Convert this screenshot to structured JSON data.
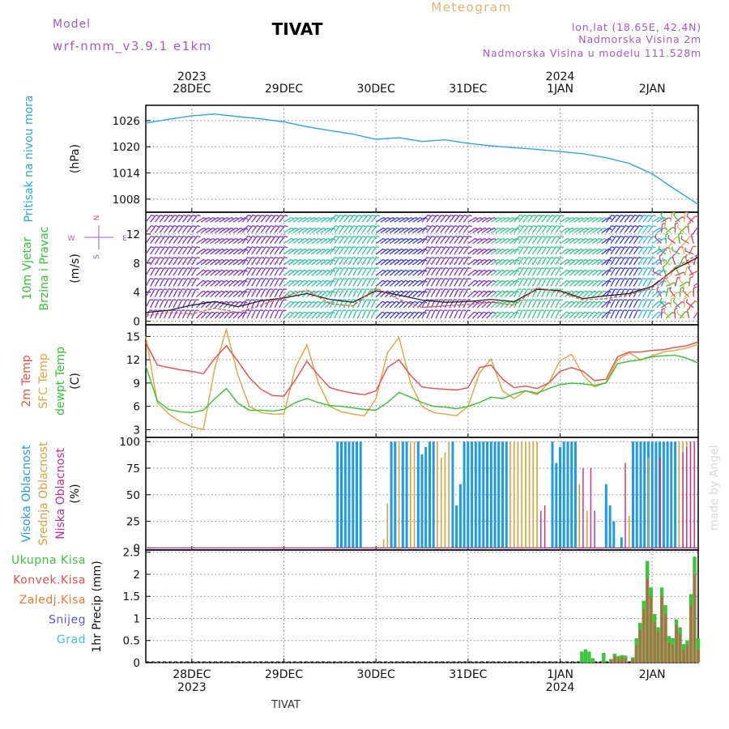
{
  "header": {
    "model_label": "Model",
    "model_name": "wrf-nmm_v3.9.1 e1km",
    "station": "TIVAT",
    "meteogram": "Meteogram",
    "lonlat": "lon,lat (18.65E, 42.4N)",
    "elevation": "Nadmorska Visina 2m",
    "model_elevation": "Nadmorska Visina u modelu 111.528m",
    "footer_station": "TIVAT",
    "credit": "made by Angel"
  },
  "time_axis": {
    "days": [
      {
        "label": "28DEC",
        "year": "2023"
      },
      {
        "label": "29DEC",
        "year": ""
      },
      {
        "label": "30DEC",
        "year": ""
      },
      {
        "label": "31DEC",
        "year": ""
      },
      {
        "label": "1JAN",
        "year": "2024"
      },
      {
        "label": "2JAN",
        "year": ""
      }
    ],
    "hours_before_first_label": 12,
    "total_hours": 144
  },
  "colors": {
    "pressure": "#29a7e6",
    "t2m": "#ec4b4b",
    "tsfc": "#e0a63c",
    "dewpt": "#2fc62f",
    "cloud_high": "#1e9be6",
    "cloud_mid": "#d9a13a",
    "cloud_low": "#cc2a90",
    "precip_total": "#3cc53c",
    "precip_conv": "#e05050",
    "snow": "#5a5ae0",
    "hail": "#3cc8c8",
    "wind_speed": "#222222",
    "wind_gust": "#e05a40"
  },
  "chart_data": [
    {
      "type": "line",
      "name": "pressure",
      "ylabel_lines": [
        "Pritisak na nivou mora"
      ],
      "unit": "(hPa)",
      "yticks": [
        1008,
        1014,
        1020,
        1026
      ],
      "ylim": [
        1005,
        1029.5
      ],
      "grid": true,
      "x_hours": [
        0,
        6,
        12,
        18,
        24,
        30,
        36,
        42,
        48,
        54,
        60,
        66,
        72,
        78,
        84,
        90,
        96,
        102,
        108,
        114,
        120,
        126,
        132,
        138,
        144
      ],
      "series": [
        {
          "values": [
            1025.4,
            1026.3,
            1027.1,
            1027.5,
            1026.9,
            1026.4,
            1025.7,
            1024.6,
            1023.7,
            1022.9,
            1021.7,
            1022.1,
            1021.2,
            1021.6,
            1020.8,
            1020.2,
            1019.8,
            1019.4,
            1018.9,
            1018.4,
            1017.5,
            1016.2,
            1013.8,
            1010.2,
            1006.8
          ]
        }
      ]
    },
    {
      "type": "line",
      "name": "wind",
      "ylabel_lines": [
        "10m Vjetar",
        "Brzina i Pravac"
      ],
      "unit": "(m/s)",
      "compass": {
        "n": "N",
        "s": "S",
        "e": "E",
        "w": "W"
      },
      "yticks": [
        0,
        4,
        8,
        12
      ],
      "ylim": [
        -0.5,
        15
      ],
      "grid": true,
      "x_hours": [
        0,
        6,
        12,
        18,
        24,
        30,
        36,
        42,
        48,
        54,
        60,
        66,
        72,
        78,
        84,
        90,
        96,
        102,
        108,
        114,
        120,
        126,
        132,
        138,
        144
      ],
      "series": [
        {
          "name": "speed",
          "values": [
            1.2,
            1.5,
            2.2,
            2.7,
            2.0,
            2.8,
            3.2,
            3.8,
            3.0,
            2.6,
            4.2,
            3.6,
            2.9,
            2.6,
            2.7,
            3.0,
            2.7,
            4.4,
            4.2,
            3.1,
            3.5,
            3.8,
            4.8,
            7.2,
            8.8
          ]
        },
        {
          "name": "gust",
          "values": [
            0.8,
            1.2,
            1.0,
            1.8,
            1.2,
            2.2,
            3.4,
            4.3,
            2.4,
            2.1,
            4.6,
            3.0,
            1.9,
            2.1,
            2.3,
            2.6,
            2.2,
            4.6,
            4.0,
            2.9,
            3.1,
            3.6,
            4.6,
            7.4,
            9.2
          ]
        }
      ]
    },
    {
      "type": "line",
      "name": "temperature",
      "ylabel_lines": [
        "2m Temp",
        "SFC Temp",
        "dewpt Temp"
      ],
      "unit": "(C)",
      "yticks": [
        3,
        6,
        9,
        12,
        15
      ],
      "ylim": [
        2,
        16.5
      ],
      "grid": true,
      "x_hours": [
        0,
        3,
        6,
        9,
        12,
        15,
        18,
        21,
        24,
        27,
        30,
        33,
        36,
        39,
        42,
        45,
        48,
        51,
        54,
        57,
        60,
        63,
        66,
        69,
        72,
        75,
        78,
        81,
        84,
        87,
        90,
        93,
        96,
        99,
        102,
        105,
        108,
        111,
        114,
        117,
        120,
        123,
        126,
        129,
        132,
        135,
        138,
        141,
        144
      ],
      "series": [
        {
          "name": "2m",
          "values": [
            14.2,
            11.3,
            11.0,
            10.7,
            10.5,
            10.2,
            12.2,
            13.8,
            11.8,
            9.7,
            8.2,
            7.4,
            7.3,
            9.4,
            11.8,
            10.0,
            8.4,
            8.0,
            7.7,
            7.5,
            8.0,
            11.0,
            12.0,
            10.0,
            8.5,
            8.3,
            8.2,
            8.1,
            8.4,
            11.0,
            11.3,
            9.5,
            8.4,
            8.6,
            8.3,
            9.0,
            10.5,
            11.0,
            10.5,
            9.3,
            9.5,
            12.4,
            13.0,
            13.0,
            13.2,
            13.3,
            13.6,
            13.8,
            14.3
          ]
        },
        {
          "name": "sfc",
          "values": [
            15.0,
            6.5,
            5.0,
            4.0,
            3.4,
            3.0,
            11.0,
            15.9,
            10.0,
            6.0,
            5.2,
            5.0,
            5.0,
            11.0,
            13.9,
            9.0,
            6.0,
            5.3,
            5.0,
            4.8,
            7.0,
            12.9,
            14.9,
            9.0,
            6.0,
            5.2,
            5.0,
            4.8,
            6.0,
            10.3,
            12.1,
            8.0,
            7.0,
            8.0,
            7.5,
            9.0,
            11.9,
            12.7,
            10.0,
            8.5,
            9.1,
            12.0,
            12.9,
            12.0,
            12.5,
            13.0,
            13.2,
            13.5,
            14.0
          ]
        },
        {
          "name": "dewpt",
          "values": [
            11.2,
            6.7,
            5.6,
            5.3,
            5.2,
            5.5,
            7.0,
            8.3,
            6.4,
            5.5,
            5.5,
            5.4,
            5.6,
            6.5,
            7.0,
            6.5,
            6.1,
            6.0,
            5.8,
            5.6,
            5.5,
            6.5,
            7.8,
            7.2,
            6.5,
            6.0,
            5.9,
            5.7,
            6.0,
            6.5,
            7.2,
            7.0,
            7.6,
            8.0,
            7.7,
            8.3,
            8.8,
            9.0,
            8.9,
            8.7,
            9.0,
            11.5,
            11.8,
            12.0,
            12.4,
            12.5,
            12.6,
            12.2,
            11.6
          ]
        }
      ]
    },
    {
      "type": "bar",
      "name": "clouds",
      "ylabel_lines": [
        "Visoka Oblacnost",
        "Srednja Oblacnost",
        "Niska Oblacnost"
      ],
      "unit": "(%)",
      "yticks": [
        0,
        25,
        50,
        75,
        100
      ],
      "ylim": [
        -2,
        104
      ],
      "grid": true,
      "series": [
        {
          "name": "high",
          "bars": [
            [
              50,
              100
            ],
            [
              51,
              100
            ],
            [
              52,
              100
            ],
            [
              53,
              100
            ],
            [
              54,
              100
            ],
            [
              55,
              100
            ],
            [
              56,
              100
            ],
            [
              64,
              100
            ],
            [
              65,
              100
            ],
            [
              67,
              100
            ],
            [
              68,
              100
            ],
            [
              71,
              100
            ],
            [
              72,
              88
            ],
            [
              73,
              95
            ],
            [
              74,
              100
            ],
            [
              75,
              100
            ],
            [
              80,
              100
            ],
            [
              81,
              40
            ],
            [
              82,
              60
            ],
            [
              83,
              100
            ],
            [
              84,
              100
            ],
            [
              85,
              100
            ],
            [
              86,
              100
            ],
            [
              87,
              100
            ],
            [
              88,
              100
            ],
            [
              89,
              100
            ],
            [
              90,
              100
            ],
            [
              91,
              100
            ],
            [
              92,
              100
            ],
            [
              93,
              100
            ],
            [
              94,
              100
            ],
            [
              106,
              100
            ],
            [
              107,
              80
            ],
            [
              108,
              95
            ],
            [
              109,
              100
            ],
            [
              110,
              100
            ],
            [
              111,
              100
            ],
            [
              112,
              100
            ],
            [
              120,
              60
            ],
            [
              121,
              40
            ],
            [
              122,
              25
            ],
            [
              124,
              10
            ],
            [
              127,
              100
            ],
            [
              128,
              100
            ],
            [
              129,
              100
            ],
            [
              130,
              100
            ],
            [
              131,
              100
            ],
            [
              132,
              100
            ],
            [
              133,
              100
            ],
            [
              134,
              100
            ],
            [
              135,
              100
            ],
            [
              136,
              100
            ],
            [
              137,
              100
            ],
            [
              138,
              100
            ]
          ]
        },
        {
          "name": "mid",
          "bars": [
            [
              62,
              8
            ],
            [
              63,
              42
            ],
            [
              66,
              100
            ],
            [
              69,
              100
            ],
            [
              70,
              100
            ],
            [
              76,
              100
            ],
            [
              77,
              85
            ],
            [
              78,
              90
            ],
            [
              79,
              100
            ],
            [
              95,
              100
            ],
            [
              96,
              100
            ],
            [
              97,
              100
            ],
            [
              98,
              100
            ],
            [
              99,
              100
            ],
            [
              100,
              100
            ],
            [
              101,
              100
            ],
            [
              102,
              100
            ],
            [
              113,
              60
            ],
            [
              115,
              35
            ],
            [
              126,
              30
            ],
            [
              131,
              85
            ],
            [
              139,
              100
            ],
            [
              140,
              100
            ],
            [
              141,
              100
            ],
            [
              142,
              100
            ],
            [
              143,
              100
            ]
          ]
        },
        {
          "name": "low",
          "bars": [
            [
              103,
              35
            ],
            [
              104,
              40
            ],
            [
              114,
              75
            ],
            [
              116,
              75
            ],
            [
              117,
              35
            ],
            [
              125,
              80
            ],
            [
              134,
              85
            ],
            [
              140,
              90
            ],
            [
              141,
              95
            ],
            [
              142,
              100
            ],
            [
              143,
              100
            ]
          ]
        }
      ]
    },
    {
      "type": "bar",
      "name": "precip",
      "ylabel_lines": [
        "Ukupna Kisa",
        "Konvek.Kisa",
        "Zaledj.Kisa",
        "Snijeg",
        "Grad"
      ],
      "unit": "1hr Precip (mm)",
      "yticks": [
        0,
        0.5,
        1,
        1.5,
        2,
        2.5
      ],
      "ylim": [
        0,
        2.55
      ],
      "grid": true,
      "series": [
        {
          "name": "total",
          "bars": [
            [
              120,
              0.25
            ],
            [
              121,
              0.3
            ],
            [
              122,
              0.25
            ],
            [
              123,
              0.1
            ],
            [
              126,
              0.22
            ],
            [
              128,
              0.08
            ],
            [
              129,
              0.2
            ],
            [
              130,
              0.15
            ],
            [
              131,
              0.17
            ],
            [
              132,
              0.16
            ],
            [
              134,
              0.12
            ],
            [
              135,
              0.55
            ],
            [
              136,
              0.9
            ],
            [
              137,
              1.4
            ],
            [
              138,
              2.3
            ],
            [
              139,
              1.7
            ],
            [
              140,
              1.1
            ],
            [
              141,
              0.8
            ],
            [
              142,
              1.7
            ],
            [
              143,
              1.3
            ],
            [
              144,
              0.6
            ],
            [
              145,
              0.55
            ],
            [
              146,
              0.98
            ],
            [
              147,
              0.8
            ],
            [
              148,
              0.42
            ],
            [
              149,
              0.5
            ],
            [
              150,
              1.55
            ],
            [
              151,
              2.4
            ],
            [
              152,
              0.55
            ]
          ]
        },
        {
          "name": "conv",
          "bars": [
            [
              128,
              0.05
            ],
            [
              129,
              0.15
            ],
            [
              130,
              0.1
            ],
            [
              131,
              0.12
            ],
            [
              132,
              0.1
            ],
            [
              134,
              0.08
            ],
            [
              135,
              0.4
            ],
            [
              136,
              0.75
            ],
            [
              137,
              1.2
            ],
            [
              138,
              1.9
            ],
            [
              139,
              1.5
            ],
            [
              140,
              0.9
            ],
            [
              141,
              0.7
            ],
            [
              142,
              1.5
            ],
            [
              143,
              1.1
            ],
            [
              144,
              0.45
            ],
            [
              145,
              0.4
            ],
            [
              146,
              0.85
            ],
            [
              147,
              0.65
            ],
            [
              148,
              0.3
            ],
            [
              149,
              0.4
            ],
            [
              150,
              1.3
            ],
            [
              151,
              2.0
            ],
            [
              152,
              0.3
            ]
          ]
        }
      ]
    }
  ]
}
